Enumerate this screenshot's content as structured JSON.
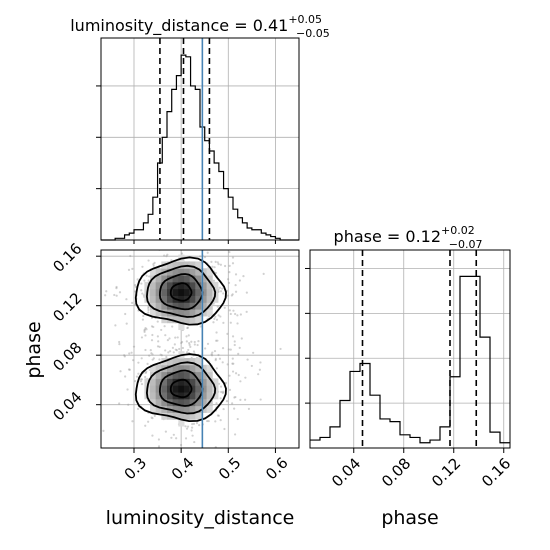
{
  "chart_data": {
    "type": "corner",
    "parameters": [
      "luminosity_distance",
      "phase"
    ],
    "truths": {
      "luminosity_distance": 0.445,
      "phase": null
    },
    "panels": [
      {
        "panel": "marginal-luminosity_distance",
        "type": "step-histogram",
        "title": {
          "name": "luminosity_distance",
          "median": "0.41",
          "plus": "+0.05",
          "minus": "−0.05"
        },
        "xlim": [
          0.23,
          0.65
        ],
        "bin_edges": [
          0.23,
          0.24,
          0.25,
          0.26,
          0.27,
          0.28,
          0.29,
          0.3,
          0.31,
          0.32,
          0.33,
          0.34,
          0.35,
          0.36,
          0.37,
          0.38,
          0.39,
          0.4,
          0.41,
          0.42,
          0.43,
          0.44,
          0.45,
          0.46,
          0.47,
          0.48,
          0.49,
          0.5,
          0.51,
          0.52,
          0.53,
          0.54,
          0.55,
          0.56,
          0.57,
          0.58,
          0.59,
          0.6,
          0.61,
          0.62,
          0.63,
          0.64,
          0.65
        ],
        "counts": [
          0,
          0,
          0,
          1,
          1,
          3,
          4,
          6,
          6,
          10,
          15,
          25,
          45,
          60,
          75,
          88,
          96,
          108,
          107,
          90,
          88,
          66,
          58,
          52,
          45,
          40,
          30,
          25,
          18,
          13,
          10,
          7,
          6,
          6,
          4,
          3,
          2,
          1,
          0,
          0,
          0,
          0
        ],
        "quantile_lines": [
          0.355,
          0.405,
          0.46
        ]
      },
      {
        "panel": "joint-luminosity_distance-phase",
        "type": "2d-density",
        "xlabel": "luminosity_distance",
        "ylabel": "phase",
        "xlim": [
          0.23,
          0.65
        ],
        "ylim": [
          0.005,
          0.165
        ],
        "modes": [
          {
            "luminosity_distance": 0.4,
            "phase": 0.131
          },
          {
            "luminosity_distance": 0.4,
            "phase": 0.053
          }
        ],
        "xticks": [
          "0.3",
          "0.4",
          "0.5",
          "0.6"
        ],
        "yticks": [
          "0.04",
          "0.08",
          "0.12",
          "0.16"
        ]
      },
      {
        "panel": "marginal-phase",
        "type": "step-histogram",
        "title": {
          "name": "phase",
          "median": "0.12",
          "plus": "+0.02",
          "minus": "−0.07"
        },
        "xlabel": "phase",
        "xlim": [
          0.005,
          0.165
        ],
        "bin_edges": [
          0.005,
          0.013,
          0.021,
          0.029,
          0.037,
          0.045,
          0.053,
          0.061,
          0.069,
          0.077,
          0.085,
          0.093,
          0.101,
          0.109,
          0.117,
          0.125,
          0.133,
          0.141,
          0.149,
          0.157,
          0.165
        ],
        "counts": [
          3,
          4,
          8,
          18,
          29,
          32,
          20,
          11,
          10,
          5,
          4,
          2,
          3,
          8,
          27,
          65,
          65,
          42,
          6,
          2
        ],
        "quantile_lines": [
          0.047,
          0.117,
          0.138
        ],
        "xticks": [
          "0.04",
          "0.08",
          "0.12",
          "0.16"
        ]
      }
    ],
    "grid": true,
    "legend": "none"
  }
}
